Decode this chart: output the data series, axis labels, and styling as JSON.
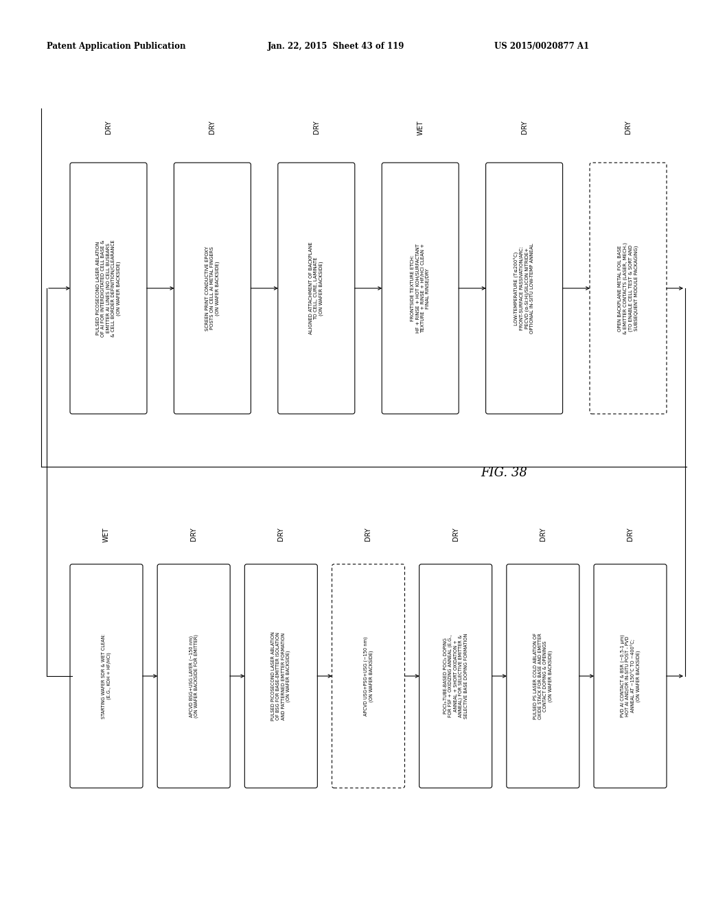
{
  "header_left": "Patent Application Publication",
  "header_mid": "Jan. 22, 2015  Sheet 43 of 119",
  "header_right": "US 2015/0020877 A1",
  "fig_label": "FIG. 38",
  "top_row": {
    "labels": [
      "DRY",
      "DRY",
      "DRY",
      "WET",
      "DRY",
      "DRY"
    ],
    "boxes": [
      "PULSED PICOSECOND LASER ABLATION\nOF AI FOR INTERDIGITATED CELL BASE &\nEMITTER AI LINES (NO CELL BUSBARS\n& CELL BORDER DEFINITION/CLEARANCE\n(ON WAFER BACKSIDE)",
      "SCREEN PRINT CONDUCTIVE EPOXY\nPOSTS ON CELL AI METAL FINGERS\n(ON WAFER BACKSIDE)",
      "ALIGNED ATTACHMENT OF BACKPLANE\nTO CELL, CURE, LAMINATE\n(ON WAFER BACKSIDE)",
      "FRONTSIDE TEXTURE ETCH:\nHF + RINSE + HOT KOH/SURFACTANT\nTEXTURE + RINSE + HF/HCl CLEAN +\nFINAL RINSE/DRY",
      "LOW-TEMPERATURE (T≤200°C)\nFRONT-SURFACE PASSIVATION/ARC:\nPECVD (α-Si:H)/SILICON NITRIDE+\nOPTIONAL IN-SITU LOW-TEMP ANNEAL",
      "OPEN BACKPLANE METAL FOIL BASE\n& EMITTER CONTACTS (LASER, MECH.)\n(TO ENABLE CELL TEST & SORT AND\nSUBSEQUENT MODULE PACKAGING)"
    ],
    "dashed": [
      false,
      false,
      false,
      false,
      false,
      true
    ]
  },
  "bottom_row": {
    "labels": [
      "WET",
      "DRY",
      "DRY",
      "DRY",
      "DRY",
      "DRY",
      "DRY"
    ],
    "boxes": [
      "STARTING WAFER SDR & WET CLEAN:\n(E.G., KOH + HF/HCl)",
      "APCVD BSG+USG LAYER (~150 nm)\n(ON WAFER BACKSIDE FOR EMITTER)",
      "PULSED PICOSECOND LASER ABLATION\nOF BSG FOR BASE-EMITTER ISOLATION\nAND PATTERNED EMITTER FORMATION\n(ON WAFER BACKSIDE)",
      "APCVD USG+PSG+USG (~150 nm)\n(ON WAFER BACKSIDE)",
      "POCl₃-TUBE-BASED POCl₃ DOPING\nFOR FSF + OXIDIZING ANNEAL (E.G.,\nANNEAL + SHORT OXIDATION +\nANNEAL) FOR SELECTIVE EMITTER &\nSELECTIVE BASE DOPING FORMATION",
      "PULSED PS LASER COLD ABLATION OF\nOXIDE STACK FOR BASE AND EMITTER\nCONTACT DOPING & OPENINGS\n(ON WAFER BACKSIDE)",
      "PVD AI CONTACT & BSR (~0.5-1 μm)\nHOT AI AND/OR IN-SITU POST - PVD\nANNEAL AT ~150°C TO ~400°C;\n(ON WAFER BACKSIDE)"
    ],
    "dashed": [
      false,
      false,
      false,
      true,
      false,
      false,
      false
    ]
  }
}
